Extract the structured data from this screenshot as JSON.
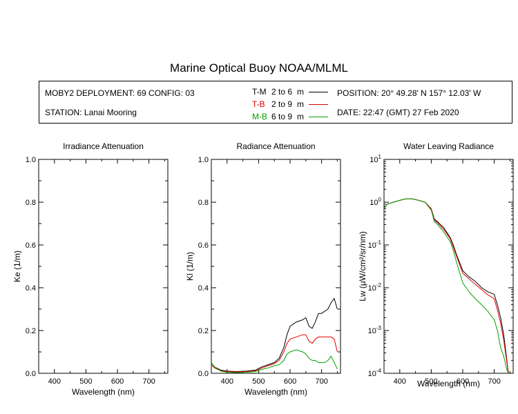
{
  "title": "Marine Optical Buoy NOAA/MLML",
  "info": {
    "deployment": "MOBY2 DEPLOYMENT: 69 CONFIG: 03",
    "station": "STATION: Lanai Mooring",
    "position": "POSITION: 20° 49.28' N   157° 12.03' W",
    "date": "DATE: 22:47 (GMT) 27 Feb 2020",
    "legend": [
      {
        "code": "T-M",
        "range": "2 to 6",
        "unit": "m",
        "color": "#000000"
      },
      {
        "code": "T-B",
        "range": "2 to 9",
        "unit": "m",
        "color": "#e00000"
      },
      {
        "code": "M-B",
        "range": "6 to 9",
        "unit": "m",
        "color": "#00a000"
      }
    ]
  },
  "chart_data": [
    {
      "type": "line",
      "title": "Irradiance Attenuation",
      "xlabel": "Wavelength (nm)",
      "ylabel": "Ke  (1/m)",
      "xlim": [
        350,
        760
      ],
      "ylim": [
        0,
        1.0
      ],
      "xticks": [
        400,
        500,
        600,
        700
      ],
      "yticks": [
        0.0,
        0.2,
        0.4,
        0.6,
        0.8,
        1.0
      ],
      "ytick_labels": [
        "0.0",
        "0.2",
        "0.4",
        "0.6",
        "0.8",
        "1.0"
      ],
      "series": []
    },
    {
      "type": "line",
      "title": "Radiance Attenuation",
      "xlabel": "Wavelength (nm)",
      "ylabel": "Kl  (1/m)",
      "xlim": [
        350,
        760
      ],
      "ylim": [
        0,
        1.0
      ],
      "xticks": [
        400,
        500,
        600,
        700
      ],
      "yticks": [
        0.0,
        0.2,
        0.4,
        0.6,
        0.8,
        1.0
      ],
      "ytick_labels": [
        "0.0",
        "0.2",
        "0.4",
        "0.6",
        "0.8",
        "1.0"
      ],
      "series": [
        {
          "name": "T-M",
          "color": "#000000",
          "x": [
            350,
            360,
            380,
            400,
            430,
            460,
            490,
            510,
            530,
            550,
            565,
            580,
            590,
            600,
            620,
            640,
            650,
            660,
            670,
            680,
            690,
            700,
            710,
            720,
            730,
            740,
            750
          ],
          "y": [
            0.05,
            0.03,
            0.015,
            0.01,
            0.008,
            0.01,
            0.015,
            0.03,
            0.04,
            0.05,
            0.07,
            0.12,
            0.18,
            0.22,
            0.24,
            0.25,
            0.26,
            0.22,
            0.21,
            0.24,
            0.28,
            0.28,
            0.29,
            0.3,
            0.33,
            0.35,
            0.3
          ]
        },
        {
          "name": "T-B",
          "color": "#e00000",
          "x": [
            350,
            360,
            380,
            400,
            430,
            460,
            490,
            510,
            530,
            550,
            565,
            580,
            590,
            600,
            620,
            640,
            650,
            660,
            670,
            680,
            690,
            700,
            710,
            720,
            730,
            740,
            750
          ],
          "y": [
            0.04,
            0.025,
            0.012,
            0.008,
            0.006,
            0.008,
            0.012,
            0.025,
            0.035,
            0.045,
            0.06,
            0.1,
            0.14,
            0.16,
            0.17,
            0.18,
            0.18,
            0.15,
            0.14,
            0.16,
            0.17,
            0.17,
            0.17,
            0.17,
            0.17,
            0.16,
            0.1
          ]
        },
        {
          "name": "M-B",
          "color": "#00a000",
          "x": [
            350,
            360,
            380,
            400,
            430,
            460,
            490,
            510,
            530,
            550,
            565,
            580,
            590,
            600,
            620,
            640,
            650,
            660,
            670,
            680,
            690,
            700,
            710,
            720,
            730,
            740,
            750
          ],
          "y": [
            0.05,
            0.03,
            0.01,
            0.005,
            0.003,
            0.005,
            0.008,
            0.018,
            0.025,
            0.035,
            0.04,
            0.06,
            0.09,
            0.1,
            0.11,
            0.1,
            0.09,
            0.07,
            0.06,
            0.06,
            0.05,
            0.05,
            0.05,
            0.06,
            0.08,
            0.05,
            0.02
          ]
        }
      ]
    },
    {
      "type": "line",
      "title": "Water Leaving Radiance",
      "xlabel": "Wavelength (nm)",
      "ylabel": "Lw  (μW/cm²/sr/nm)",
      "xlim": [
        350,
        760
      ],
      "ylim": [
        0.0001,
        10
      ],
      "log_y": true,
      "xticks": [
        400,
        500,
        600,
        700
      ],
      "yticks": [
        0.0001,
        0.001,
        0.01,
        0.1,
        1,
        10
      ],
      "ytick_exponents": [
        "-4",
        "-3",
        "-2",
        "-1",
        "0",
        "1"
      ],
      "series": [
        {
          "name": "T-M",
          "color": "#000000",
          "x": [
            350,
            360,
            380,
            400,
            420,
            440,
            460,
            480,
            500,
            510,
            520,
            540,
            560,
            570,
            580,
            600,
            620,
            640,
            660,
            680,
            690,
            700,
            710,
            720,
            730,
            740,
            745
          ],
          "y": [
            0.7,
            0.9,
            1.0,
            1.1,
            1.2,
            1.2,
            1.1,
            1.0,
            0.7,
            0.4,
            0.35,
            0.25,
            0.15,
            0.1,
            0.06,
            0.025,
            0.018,
            0.014,
            0.01,
            0.008,
            0.0075,
            0.007,
            0.004,
            0.002,
            0.0008,
            0.0002,
            0.0001
          ]
        },
        {
          "name": "T-B",
          "color": "#e00000",
          "x": [
            350,
            360,
            380,
            400,
            420,
            440,
            460,
            480,
            500,
            510,
            520,
            540,
            560,
            570,
            580,
            600,
            620,
            640,
            660,
            680,
            690,
            700,
            710,
            720,
            730,
            740,
            745
          ],
          "y": [
            0.7,
            0.9,
            1.0,
            1.1,
            1.2,
            1.2,
            1.1,
            1.0,
            0.7,
            0.38,
            0.33,
            0.23,
            0.14,
            0.09,
            0.055,
            0.022,
            0.016,
            0.012,
            0.009,
            0.0068,
            0.0062,
            0.0055,
            0.003,
            0.0015,
            0.0006,
            0.00018,
            0.0001
          ]
        },
        {
          "name": "M-B",
          "color": "#00a000",
          "x": [
            350,
            360,
            380,
            400,
            420,
            440,
            460,
            480,
            500,
            510,
            520,
            540,
            560,
            570,
            580,
            600,
            620,
            640,
            660,
            680,
            690,
            700,
            710,
            720,
            730,
            740,
            745
          ],
          "y": [
            0.7,
            0.9,
            1.0,
            1.1,
            1.2,
            1.2,
            1.1,
            1.0,
            0.65,
            0.35,
            0.3,
            0.2,
            0.12,
            0.075,
            0.04,
            0.013,
            0.008,
            0.0055,
            0.004,
            0.0028,
            0.0022,
            0.0018,
            0.001,
            0.0004,
            0.00025,
            0.00012,
            0.0001
          ]
        }
      ]
    }
  ]
}
